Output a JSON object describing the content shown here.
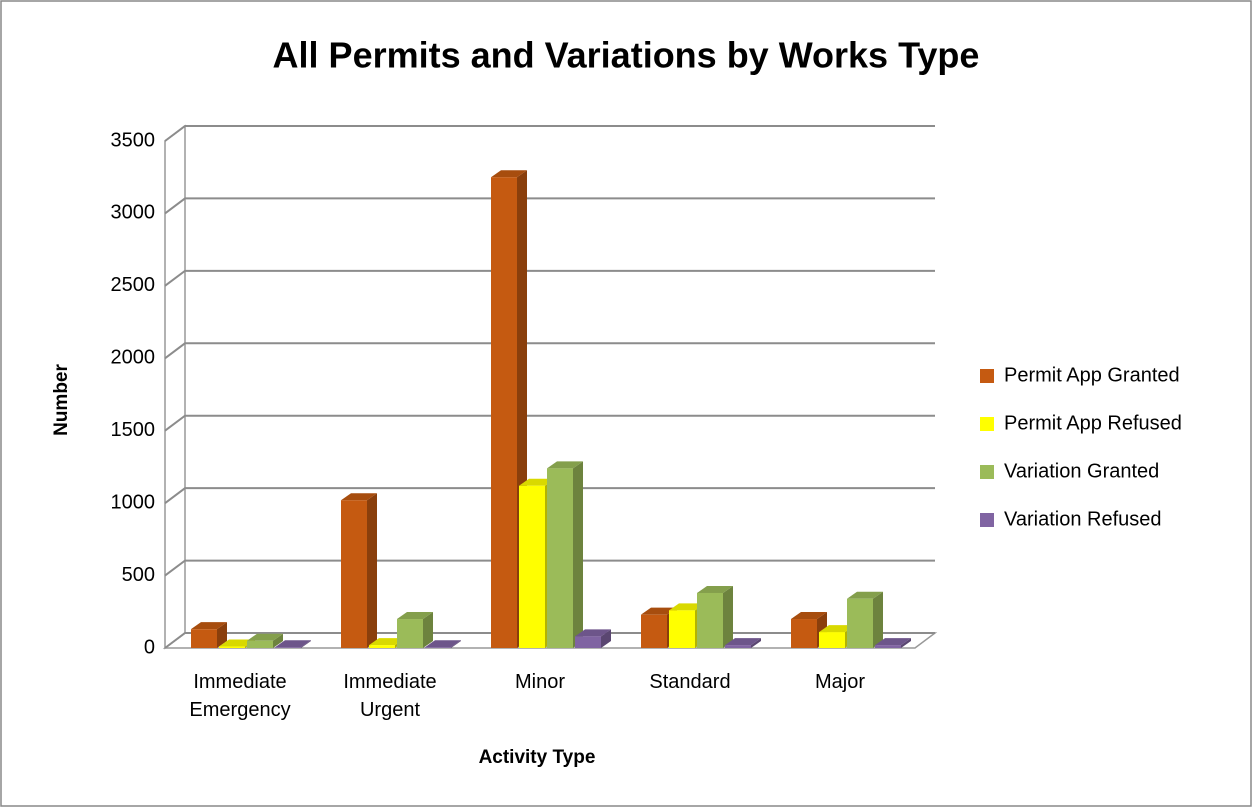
{
  "chart_data": {
    "type": "bar3d",
    "title": "All Permits and Variations by Works Type",
    "x_label": "Activity Type",
    "y_label": "Number",
    "categories": [
      "Immediate Emergency",
      "Immediate Urgent",
      "Minor",
      "Standard",
      "Major"
    ],
    "series": [
      {
        "name": "Permit App Granted",
        "color": "#c55a11",
        "values": [
          130,
          1020,
          3250,
          230,
          200
        ]
      },
      {
        "name": "Permit App Refused",
        "color": "#ffff00",
        "values": [
          10,
          20,
          1120,
          260,
          110
        ]
      },
      {
        "name": "Variation Granted",
        "color": "#9bbb59",
        "values": [
          50,
          200,
          1240,
          380,
          340
        ]
      },
      {
        "name": "Variation Refused",
        "color": "#8064a2",
        "values": [
          5,
          5,
          80,
          20,
          20
        ]
      }
    ],
    "ylim": [
      0,
      3500
    ],
    "yticks": [
      0,
      500,
      1000,
      1500,
      2000,
      2500,
      3000,
      3500
    ],
    "grid": true,
    "legend": "right"
  }
}
